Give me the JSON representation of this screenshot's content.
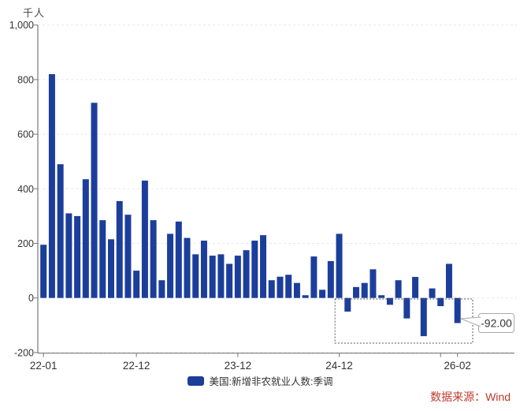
{
  "unit_label": "千人",
  "source_note": "数据来源：Wind",
  "legend": {
    "series_label": "美国:新增非农就业人数:季调"
  },
  "annotation": {
    "callout_value": "-92.00",
    "highlight_from": "24-12",
    "highlight_to": "26-02"
  },
  "colors": {
    "bar": "#1c3e9b",
    "axis": "#777777",
    "grid": "#e8e8e8",
    "tick_label": "#333333",
    "source_red": "#c0392b",
    "callout_border": "#aaaaaa",
    "callout_text": "#333333",
    "highlight_box": "#555555"
  },
  "chart_data": {
    "type": "bar",
    "title": "",
    "ylabel": "千人",
    "xlabel": "",
    "series_name": "美国:新增非农就业人数:季调",
    "ylim": [
      -200,
      1000
    ],
    "grid": "horizontal-dashed",
    "legend_position": "bottom-center",
    "yticks": [
      1000,
      800,
      600,
      400,
      200,
      0,
      -200
    ],
    "ytick_labels": [
      "1,000",
      "800",
      "600",
      "400",
      "200",
      "0",
      "-200"
    ],
    "xtick_indices": [
      0,
      11,
      23,
      35,
      47,
      49
    ],
    "xtick_labels": [
      "22-01",
      "22-12",
      "23-12",
      "24-12",
      "",
      "26-02"
    ],
    "categories": [
      "22-01",
      "22-02",
      "22-03",
      "22-04",
      "22-05",
      "22-06",
      "22-07",
      "22-08",
      "22-09",
      "22-10",
      "22-11",
      "22-12",
      "23-01",
      "23-02",
      "23-03",
      "23-04",
      "23-05",
      "23-06",
      "23-07",
      "23-08",
      "23-09",
      "23-10",
      "23-11",
      "23-12",
      "24-01",
      "24-02",
      "24-03",
      "24-04",
      "24-05",
      "24-06",
      "24-07",
      "24-08",
      "24-09",
      "24-10",
      "24-11",
      "24-12",
      "25-01",
      "25-02",
      "25-03",
      "25-04",
      "25-05",
      "25-06",
      "25-07",
      "25-08",
      "25-09",
      "25-10",
      "25-11",
      "25-12",
      "26-01",
      "26-02"
    ],
    "values": [
      195,
      820,
      490,
      310,
      300,
      435,
      715,
      285,
      215,
      355,
      305,
      100,
      430,
      285,
      65,
      235,
      280,
      220,
      160,
      210,
      155,
      160,
      125,
      155,
      175,
      210,
      230,
      65,
      78,
      85,
      55,
      10,
      152,
      30,
      135,
      235,
      -50,
      40,
      55,
      105,
      10,
      -25,
      65,
      -75,
      77,
      -140,
      35,
      -30,
      125,
      -92
    ],
    "annotation": {
      "highlight_box_from_index": 35,
      "highlight_box_to_index": 49,
      "callout_value": "-92.00",
      "callout_target_index": 49
    }
  }
}
